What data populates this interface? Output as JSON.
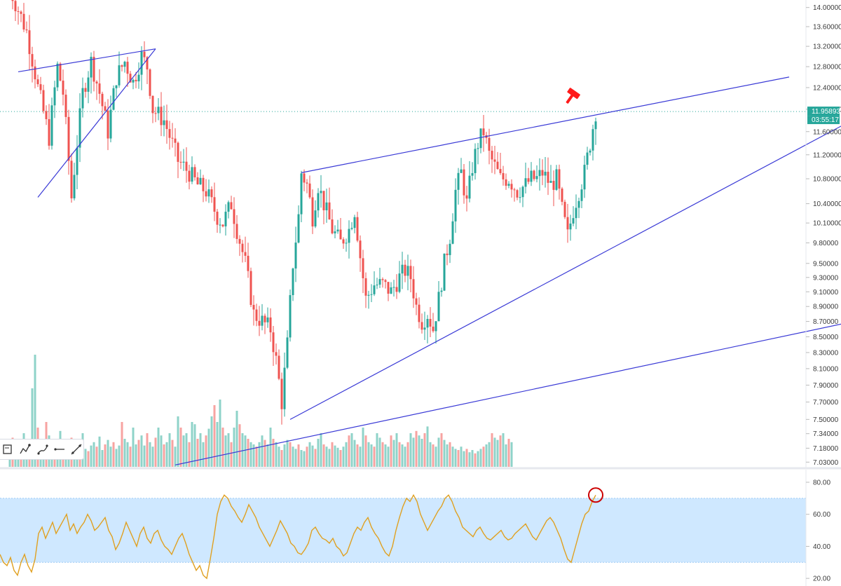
{
  "chart_data": [
    {
      "type": "candlestick",
      "panel": "price",
      "title": "",
      "xlabel": "",
      "ylabel": "",
      "ylim": [
        6.98,
        14.1
      ],
      "y_scale": "log",
      "y_ticks": [
        "14.00000",
        "13.60000",
        "13.20000",
        "12.80000",
        "12.40000",
        "12.00000",
        "11.60000",
        "11.20000",
        "10.80000",
        "10.40000",
        "10.10000",
        "9.80000",
        "9.50000",
        "9.30000",
        "9.10000",
        "8.90000",
        "8.70000",
        "8.50000",
        "8.30000",
        "8.10000",
        "7.90000",
        "7.70000",
        "7.50000",
        "7.34000",
        "7.18000",
        "7.03000"
      ],
      "y_tick_values": [
        14.0,
        13.6,
        13.2,
        12.8,
        12.4,
        12.0,
        11.6,
        11.2,
        10.8,
        10.4,
        10.1,
        9.8,
        9.5,
        9.3,
        9.1,
        8.9,
        8.7,
        8.5,
        8.3,
        8.1,
        7.9,
        7.7,
        7.5,
        7.34,
        7.18,
        7.03
      ],
      "last_price_label": "11.95893",
      "countdown_label": "03:55:17",
      "last_price": 11.95893,
      "grid": false,
      "colors": {
        "up": "#26a69a",
        "down": "#ef5350",
        "trendline": "#3a3ad6",
        "last_price_tag": "#26a69a",
        "marker": "#ff0000"
      },
      "price_path": [
        [
          0,
          14.4
        ],
        [
          6,
          13.5
        ],
        [
          10,
          12.4
        ],
        [
          14,
          11.5
        ],
        [
          17,
          12.8
        ],
        [
          19,
          12.3
        ],
        [
          22,
          10.5
        ],
        [
          26,
          12.3
        ],
        [
          29,
          12.9
        ],
        [
          32,
          12.3
        ],
        [
          35,
          11.6
        ],
        [
          38,
          12.6
        ],
        [
          41,
          12.9
        ],
        [
          44,
          12.5
        ],
        [
          47,
          13.0
        ],
        [
          49,
          12.8
        ],
        [
          51,
          12.0
        ],
        [
          55,
          11.8
        ],
        [
          60,
          11.1
        ],
        [
          64,
          10.9
        ],
        [
          67,
          10.7
        ],
        [
          70,
          10.6
        ],
        [
          74,
          10.2
        ],
        [
          76,
          10.1
        ],
        [
          79,
          10.4
        ],
        [
          81,
          10.0
        ],
        [
          84,
          9.5
        ],
        [
          87,
          8.8
        ],
        [
          90,
          8.7
        ],
        [
          93,
          8.6
        ],
        [
          95,
          8.2
        ],
        [
          97,
          7.7
        ],
        [
          99,
          8.4
        ],
        [
          101,
          9.5
        ],
        [
          103,
          10.2
        ],
        [
          104,
          10.9
        ],
        [
          106,
          10.7
        ],
        [
          108,
          10.2
        ],
        [
          110,
          10.7
        ],
        [
          112,
          10.4
        ],
        [
          115,
          10.0
        ],
        [
          118,
          9.8
        ],
        [
          121,
          10.0
        ],
        [
          123,
          10.3
        ],
        [
          125,
          9.6
        ],
        [
          127,
          9.0
        ],
        [
          130,
          9.2
        ],
        [
          133,
          9.2
        ],
        [
          136,
          9.1
        ],
        [
          139,
          9.3
        ],
        [
          141,
          9.4
        ],
        [
          143,
          9.3
        ],
        [
          145,
          8.9
        ],
        [
          147,
          8.7
        ],
        [
          149,
          8.8
        ],
        [
          151,
          8.6
        ],
        [
          153,
          9.0
        ],
        [
          155,
          9.5
        ],
        [
          157,
          9.9
        ],
        [
          159,
          10.6
        ],
        [
          161,
          10.9
        ],
        [
          163,
          10.4
        ],
        [
          165,
          11.0
        ],
        [
          167,
          11.4
        ],
        [
          169,
          11.6
        ],
        [
          171,
          11.2
        ],
        [
          173,
          11.0
        ],
        [
          175,
          10.8
        ],
        [
          178,
          10.8
        ],
        [
          181,
          10.6
        ],
        [
          184,
          10.7
        ],
        [
          186,
          10.8
        ],
        [
          188,
          10.8
        ],
        [
          190,
          10.9
        ],
        [
          193,
          10.7
        ],
        [
          195,
          10.8
        ],
        [
          197,
          10.3
        ],
        [
          199,
          9.9
        ],
        [
          201,
          10.3
        ],
        [
          203,
          10.6
        ],
        [
          205,
          10.9
        ],
        [
          207,
          11.4
        ],
        [
          209,
          11.95893
        ]
      ],
      "trendlines": [
        {
          "name": "upper-wedge-line",
          "from": [
            104,
            10.9
          ],
          "to": [
            278,
            12.6
          ]
        },
        {
          "name": "lower-wedge-line",
          "from": [
            100,
            7.5
          ],
          "to": [
            306,
            11.95
          ]
        },
        {
          "name": "long-support-line",
          "from": [
            59,
            7.0
          ],
          "to": [
            320,
            8.85
          ]
        },
        {
          "name": "triangle-top-line",
          "from": [
            3,
            12.7
          ],
          "to": [
            52,
            13.15
          ]
        },
        {
          "name": "triangle-bottom-line",
          "from": [
            10,
            10.5
          ],
          "to": [
            52,
            13.15
          ]
        }
      ]
    },
    {
      "type": "bar",
      "panel": "volume",
      "title": "",
      "series": [
        {
          "values": [
            0.2,
            0.26,
            0.18,
            0.22,
            0.15,
            0.3,
            0.12,
            0.25,
            0.7,
            1.0,
            0.35,
            0.2,
            0.18,
            0.4,
            0.28,
            0.22,
            0.19,
            0.24,
            0.32,
            0.15,
            0.22,
            0.18,
            0.26,
            0.2,
            0.17,
            0.21,
            0.3,
            0.16,
            0.14,
            0.19,
            0.22,
            0.18,
            0.27,
            0.15,
            0.2,
            0.24,
            0.18,
            0.22,
            0.16,
            0.19,
            0.4,
            0.25,
            0.22,
            0.18,
            0.35,
            0.2,
            0.24,
            0.28,
            0.19,
            0.3,
            0.22,
            0.18,
            0.26,
            0.35,
            0.28,
            0.2,
            0.22,
            0.3,
            0.24,
            0.18,
            0.45,
            0.35,
            0.28,
            0.3,
            0.22,
            0.4,
            0.38,
            0.25,
            0.3,
            0.22,
            0.28,
            0.34,
            0.45,
            0.55,
            0.4,
            0.6,
            0.35,
            0.28,
            0.3,
            0.22,
            0.35,
            0.5,
            0.38,
            0.3,
            0.28,
            0.25,
            0.22,
            0.2,
            0.18,
            0.22,
            0.28,
            0.24,
            0.2,
            0.35,
            0.25,
            0.22,
            0.18,
            0.15,
            0.2,
            0.24,
            0.22,
            0.18,
            0.16,
            0.2,
            0.15,
            0.14,
            0.18,
            0.22,
            0.19,
            0.16,
            0.25,
            0.3,
            0.2,
            0.18,
            0.16,
            0.22,
            0.19,
            0.17,
            0.15,
            0.18,
            0.22,
            0.28,
            0.3,
            0.24,
            0.2,
            0.18,
            0.35,
            0.28,
            0.22,
            0.2,
            0.18,
            0.3,
            0.26,
            0.22,
            0.2,
            0.18,
            0.28,
            0.24,
            0.3,
            0.22,
            0.2,
            0.18,
            0.22,
            0.3,
            0.26,
            0.32,
            0.28,
            0.25,
            0.3,
            0.36,
            0.22,
            0.2,
            0.18,
            0.26,
            0.3,
            0.24,
            0.2,
            0.22,
            0.18,
            0.16,
            0.15,
            0.18,
            0.14,
            0.16,
            0.13,
            0.15,
            0.12,
            0.14,
            0.16,
            0.18,
            0.2,
            0.22,
            0.3,
            0.26,
            0.24,
            0.28,
            0.3,
            0.2,
            0.25,
            0.22
          ]
        }
      ],
      "colors": {
        "up": "#8fd3c9",
        "down": "#f7a3a1"
      }
    },
    {
      "type": "line",
      "panel": "rsi",
      "title": "",
      "y_ticks": [
        "80.00",
        "60.00",
        "40.00",
        "20.00"
      ],
      "y_tick_values": [
        80,
        60,
        40,
        20
      ],
      "ylim": [
        17,
        87
      ],
      "band": [
        30,
        70
      ],
      "colors": {
        "line": "#e0a020",
        "band": "#bfe0ff",
        "band_edge": "#9ecbf5",
        "marker": "#cc0000"
      },
      "series": [
        {
          "values": [
            35,
            30,
            28,
            33,
            25,
            22,
            30,
            35,
            28,
            24,
            32,
            48,
            52,
            45,
            50,
            55,
            48,
            52,
            56,
            60,
            50,
            54,
            48,
            52,
            55,
            60,
            56,
            50,
            52,
            55,
            58,
            50,
            46,
            38,
            42,
            48,
            55,
            50,
            45,
            40,
            48,
            52,
            45,
            42,
            48,
            50,
            44,
            40,
            38,
            35,
            40,
            45,
            48,
            42,
            35,
            30,
            25,
            28,
            22,
            20,
            32,
            45,
            60,
            68,
            72,
            70,
            65,
            62,
            58,
            55,
            60,
            66,
            62,
            58,
            52,
            48,
            44,
            40,
            45,
            50,
            56,
            52,
            48,
            42,
            40,
            36,
            35,
            38,
            42,
            50,
            52,
            48,
            45,
            44,
            42,
            45,
            40,
            38,
            34,
            36,
            42,
            48,
            52,
            50,
            55,
            58,
            52,
            48,
            45,
            40,
            36,
            34,
            40,
            50,
            58,
            65,
            70,
            68,
            72,
            68,
            60,
            55,
            50,
            54,
            58,
            62,
            65,
            70,
            72,
            68,
            62,
            58,
            52,
            50,
            48,
            46,
            50,
            52,
            48,
            45,
            44,
            46,
            48,
            50,
            46,
            44,
            45,
            48,
            50,
            52,
            54,
            50,
            46,
            44,
            48,
            52,
            56,
            58,
            55,
            50,
            45,
            38,
            32,
            30,
            38,
            46,
            54,
            60,
            62,
            68,
            72
          ]
        }
      ],
      "last_rsi_marker": true
    }
  ]
}
